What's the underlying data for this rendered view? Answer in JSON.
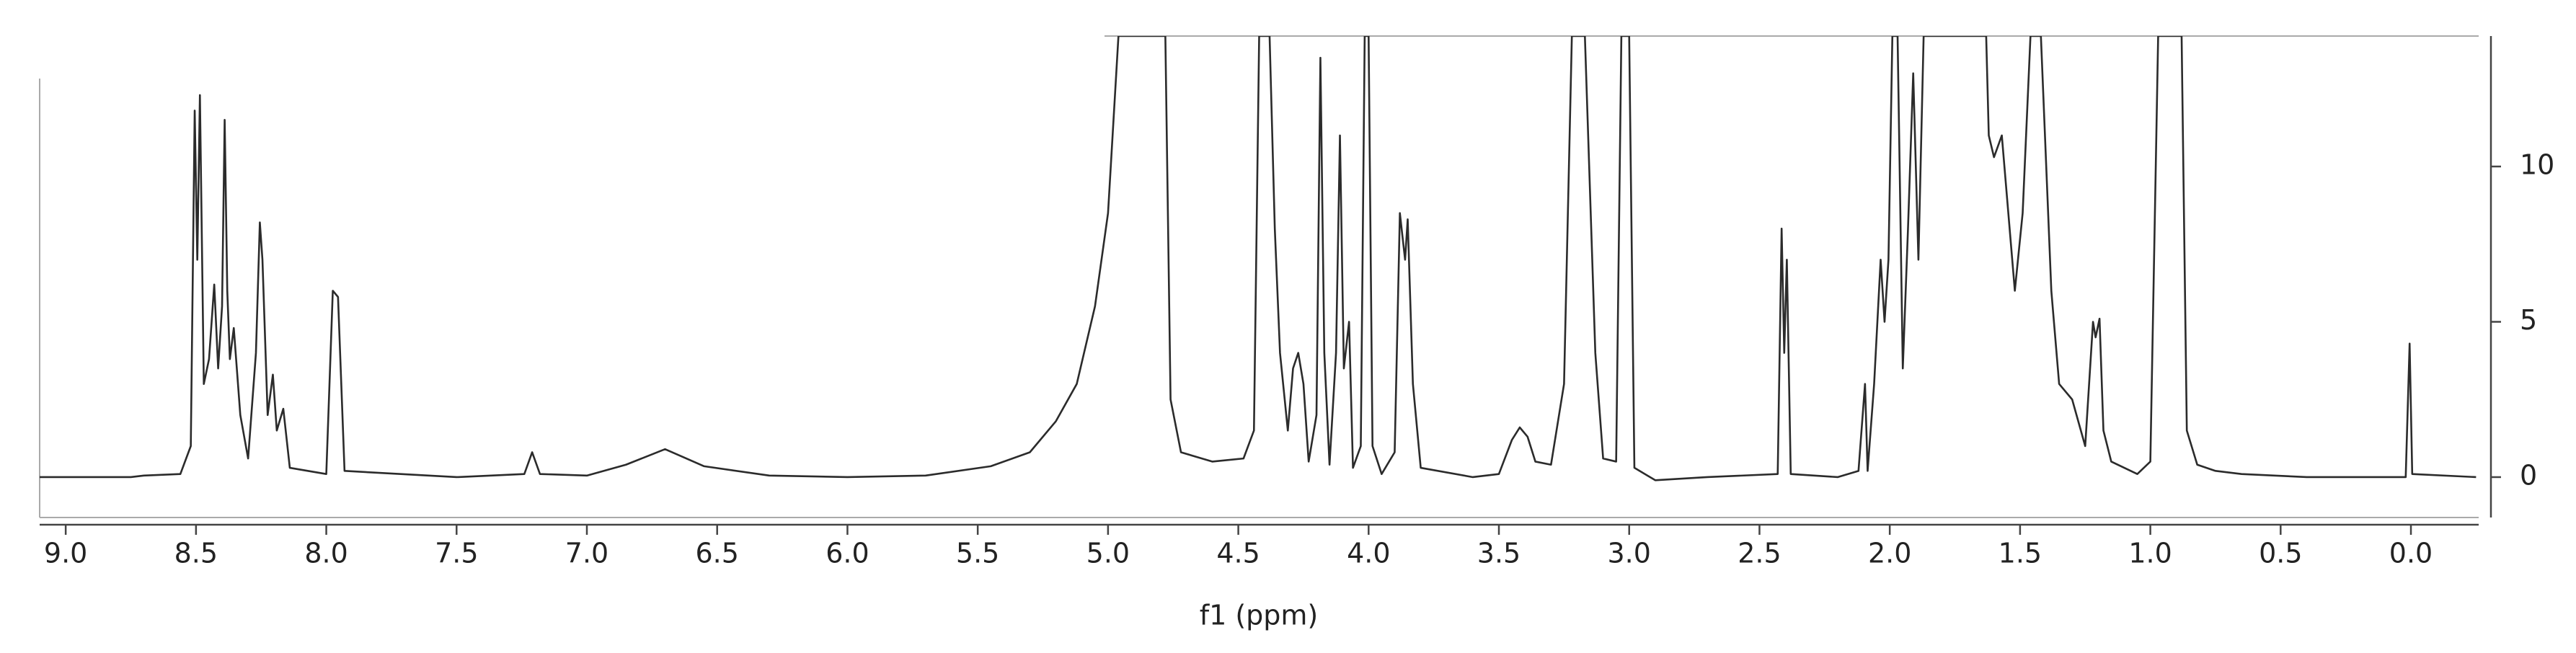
{
  "chart_data": {
    "type": "line",
    "x_label": "f1 (ppm)",
    "color": "#2b2b2b",
    "xlim": [
      9.1,
      -0.26
    ],
    "ylim": [
      -1.3,
      14.2
    ],
    "xticks": [
      {
        "value": 9,
        "label": "9.0"
      },
      8.5,
      {
        "value": 8,
        "label": "8.0"
      },
      7.5,
      {
        "value": 7,
        "label": "7.0"
      },
      6.5,
      {
        "value": 6,
        "label": "6.0"
      },
      5.5,
      {
        "value": 5,
        "label": "5.0"
      },
      4.5,
      {
        "value": 4,
        "label": "4.0"
      },
      3.5,
      {
        "value": 3,
        "label": "3.0"
      },
      2.5,
      {
        "value": 2,
        "label": "2.0"
      },
      1.5,
      {
        "value": 1,
        "label": "1.0"
      },
      0.5,
      {
        "value": 0,
        "label": "0.0"
      }
    ],
    "yticks": [
      0,
      5,
      10
    ],
    "x": [
      9.2,
      8.75,
      8.7,
      8.56,
      8.52,
      8.505,
      8.495,
      8.485,
      8.47,
      8.45,
      8.43,
      8.415,
      8.4,
      8.39,
      8.38,
      8.37,
      8.355,
      8.33,
      8.3,
      8.27,
      8.255,
      8.245,
      8.225,
      8.205,
      8.19,
      8.165,
      8.14,
      8.0,
      7.975,
      7.955,
      7.93,
      7.5,
      7.24,
      7.21,
      7.18,
      7.0,
      6.85,
      6.7,
      6.55,
      6.3,
      6.0,
      5.7,
      5.45,
      5.3,
      5.2,
      5.12,
      5.05,
      5.0,
      4.96,
      4.78,
      4.76,
      4.72,
      4.6,
      4.48,
      4.44,
      4.42,
      4.38,
      4.36,
      4.34,
      4.31,
      4.29,
      4.27,
      4.25,
      4.23,
      4.2,
      4.185,
      4.17,
      4.15,
      4.125,
      4.11,
      4.095,
      4.075,
      4.06,
      4.03,
      4.015,
      4.0,
      3.985,
      3.95,
      3.9,
      3.88,
      3.86,
      3.85,
      3.83,
      3.8,
      3.6,
      3.5,
      3.45,
      3.42,
      3.39,
      3.36,
      3.3,
      3.25,
      3.22,
      3.17,
      3.13,
      3.1,
      3.05,
      3.03,
      3.0,
      2.98,
      2.9,
      2.7,
      2.43,
      2.415,
      2.405,
      2.395,
      2.38,
      2.2,
      2.12,
      2.095,
      2.085,
      2.06,
      2.035,
      2.02,
      2.005,
      1.99,
      1.97,
      1.95,
      1.93,
      1.91,
      1.89,
      1.87,
      1.78,
      1.72,
      1.66,
      1.63,
      1.62,
      1.6,
      1.57,
      1.55,
      1.52,
      1.49,
      1.46,
      1.42,
      1.38,
      1.35,
      1.3,
      1.25,
      1.22,
      1.21,
      1.195,
      1.18,
      1.15,
      1.05,
      1.0,
      0.97,
      0.88,
      0.86,
      0.82,
      0.75,
      0.65,
      0.4,
      0.02,
      0.005,
      -0.005,
      -0.25
    ],
    "values": [
      0,
      0,
      0.05,
      0.1,
      1,
      11.8,
      7,
      12.3,
      3,
      3.8,
      6.2,
      3.5,
      5.5,
      11.5,
      6,
      3.8,
      4.8,
      2,
      0.6,
      4,
      8.2,
      7,
      2,
      3.3,
      1.5,
      2.2,
      0.3,
      0.1,
      6,
      5.8,
      0.2,
      0,
      0.1,
      0.8,
      0.1,
      0.05,
      0.4,
      0.9,
      0.35,
      0.05,
      0,
      0.05,
      0.35,
      0.8,
      1.8,
      3,
      5.5,
      8.5,
      14.2,
      14.2,
      2.5,
      0.8,
      0.5,
      0.6,
      1.5,
      14.2,
      14.2,
      8,
      4,
      1.5,
      3.5,
      4,
      3,
      0.5,
      2,
      13.5,
      4,
      0.4,
      4,
      11,
      3.5,
      5,
      0.3,
      1,
      14.2,
      14.2,
      1,
      0.1,
      0.8,
      8.5,
      7,
      8.3,
      3,
      0.3,
      0,
      0.1,
      1.2,
      1.6,
      1.3,
      0.5,
      0.4,
      3,
      14.2,
      14.2,
      4,
      0.6,
      0.5,
      14.2,
      14.2,
      0.3,
      -0.1,
      0,
      0.1,
      8,
      4,
      7,
      0.1,
      0,
      0.2,
      3,
      0.2,
      3,
      7,
      5,
      7,
      14.2,
      14.2,
      3.5,
      8,
      13,
      7,
      14.2,
      14.2,
      14.2,
      14.2,
      14.2,
      11,
      10.3,
      11,
      9,
      6,
      8.5,
      14.2,
      14.2,
      6,
      3,
      2.5,
      1,
      5,
      4.5,
      5.1,
      1.5,
      0.5,
      0.1,
      0.5,
      14.2,
      14.2,
      1.5,
      0.4,
      0.2,
      0.1,
      0,
      0,
      4.3,
      0.1,
      0
    ]
  }
}
